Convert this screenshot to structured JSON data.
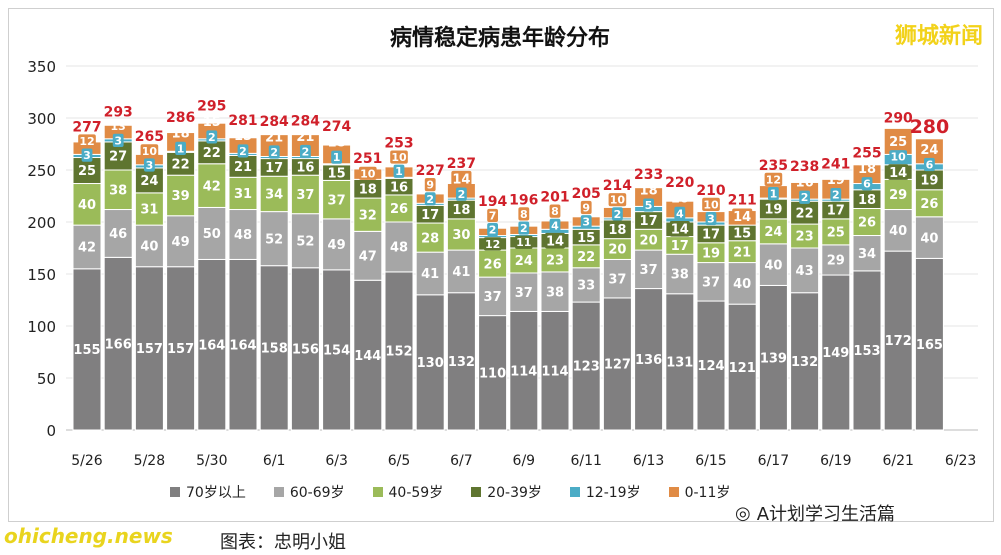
{
  "title": "病情稳定病患年龄分布",
  "watermark": "狮城新闻",
  "site": "ohicheng.news",
  "caption": "图表：忠明小姐",
  "wechat": "A计划学习生活篇",
  "chart_data": {
    "type": "bar",
    "stacked": true,
    "title": "病情稳定病患年龄分布",
    "ylim": [
      0,
      350
    ],
    "yticks": [
      0,
      50,
      100,
      150,
      200,
      250,
      300,
      350
    ],
    "grid": true,
    "legend": "bottom",
    "categories": [
      "5/26",
      "5/27",
      "5/28",
      "5/29",
      "5/30",
      "5/31",
      "6/1",
      "6/2",
      "6/3",
      "6/4",
      "6/5",
      "6/6",
      "6/7",
      "6/8",
      "6/9",
      "6/10",
      "6/11",
      "6/12",
      "6/13",
      "6/14",
      "6/15",
      "6/16",
      "6/17",
      "6/18",
      "6/19",
      "6/20",
      "6/21",
      "6/22"
    ],
    "xtick_labels": [
      "5/26",
      "5/28",
      "5/30",
      "6/1",
      "6/3",
      "6/5",
      "6/7",
      "6/9",
      "6/11",
      "6/13",
      "6/15",
      "6/17",
      "6/19",
      "6/21",
      "6/23"
    ],
    "series": [
      {
        "name": "70岁以上",
        "color": "#807f80",
        "values": [
          155,
          166,
          157,
          157,
          164,
          164,
          158,
          156,
          154,
          144,
          152,
          130,
          132,
          110,
          114,
          114,
          123,
          127,
          136,
          131,
          124,
          121,
          139,
          132,
          149,
          153,
          172,
          165
        ]
      },
      {
        "name": "60-69岁",
        "color": "#a6a6a6",
        "values": [
          42,
          46,
          40,
          49,
          50,
          48,
          52,
          52,
          49,
          47,
          48,
          41,
          41,
          37,
          37,
          38,
          33,
          37,
          37,
          38,
          37,
          40,
          40,
          43,
          29,
          34,
          40,
          40
        ]
      },
      {
        "name": "40-59岁",
        "color": "#9bbb59",
        "values": [
          40,
          38,
          31,
          39,
          42,
          31,
          34,
          37,
          37,
          32,
          26,
          28,
          30,
          26,
          24,
          23,
          22,
          20,
          20,
          17,
          19,
          21,
          24,
          23,
          25,
          26,
          29,
          26
        ]
      },
      {
        "name": "20-39岁",
        "color": "#5f7530",
        "values": [
          25,
          27,
          24,
          22,
          22,
          21,
          17,
          16,
          15,
          18,
          16,
          17,
          18,
          12,
          11,
          14,
          15,
          18,
          17,
          14,
          17,
          15,
          19,
          22,
          17,
          18,
          14,
          19
        ]
      },
      {
        "name": "12-19岁",
        "color": "#4bacc6",
        "values": [
          3,
          3,
          3,
          1,
          2,
          2,
          2,
          2,
          1,
          0,
          1,
          2,
          2,
          2,
          2,
          4,
          3,
          2,
          5,
          4,
          3,
          0,
          1,
          2,
          2,
          6,
          10,
          6
        ]
      },
      {
        "name": "0-11岁",
        "color": "#e08b45",
        "values": [
          12,
          13,
          10,
          18,
          15,
          15,
          21,
          21,
          18,
          10,
          10,
          9,
          14,
          7,
          8,
          8,
          9,
          10,
          18,
          16,
          10,
          14,
          12,
          16,
          19,
          18,
          25,
          24
        ]
      }
    ],
    "totals": [
      277,
      293,
      265,
      286,
      295,
      281,
      284,
      284,
      274,
      251,
      253,
      227,
      237,
      194,
      196,
      201,
      205,
      214,
      233,
      220,
      210,
      211,
      235,
      238,
      241,
      255,
      290,
      280
    ],
    "total_color": "#d0202a"
  }
}
